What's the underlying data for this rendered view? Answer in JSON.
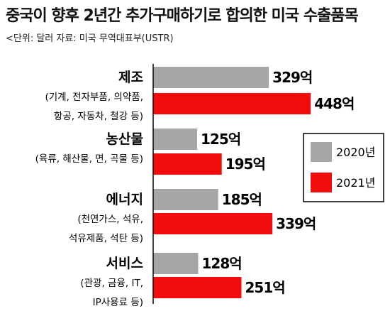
{
  "title": "중국이 향후 2년간 추가구매하기로 합의한 미국 수출품목",
  "source": "<단위: 달러 자료: 미국 무역대표부(USTR)",
  "value_suffix": "억",
  "colors": {
    "2020": "#a6a6a6",
    "2021": "#f20d0d",
    "axis": "#000000"
  },
  "chart_data": {
    "type": "bar",
    "orientation": "horizontal",
    "categories": [
      {
        "name": "제조",
        "sub": [
          "(기계, 전자부품, 의약품,",
          "항공, 자동차, 철강 등)"
        ]
      },
      {
        "name": "농산물",
        "sub": [
          "(육류, 해산물, 면, 곡물 등)"
        ]
      },
      {
        "name": "에너지",
        "sub": [
          "(천연가스, 석유,",
          "석유제품, 석탄 등)"
        ]
      },
      {
        "name": "서비스",
        "sub": [
          "(관광, 금융, IT,",
          "IP사용료 등)"
        ]
      }
    ],
    "series": [
      {
        "name": "2020년",
        "color": "#a6a6a6",
        "values": [
          329,
          125,
          185,
          128
        ]
      },
      {
        "name": "2021년",
        "color": "#f20d0d",
        "values": [
          448,
          195,
          339,
          251
        ]
      }
    ],
    "legend_position": "right"
  }
}
